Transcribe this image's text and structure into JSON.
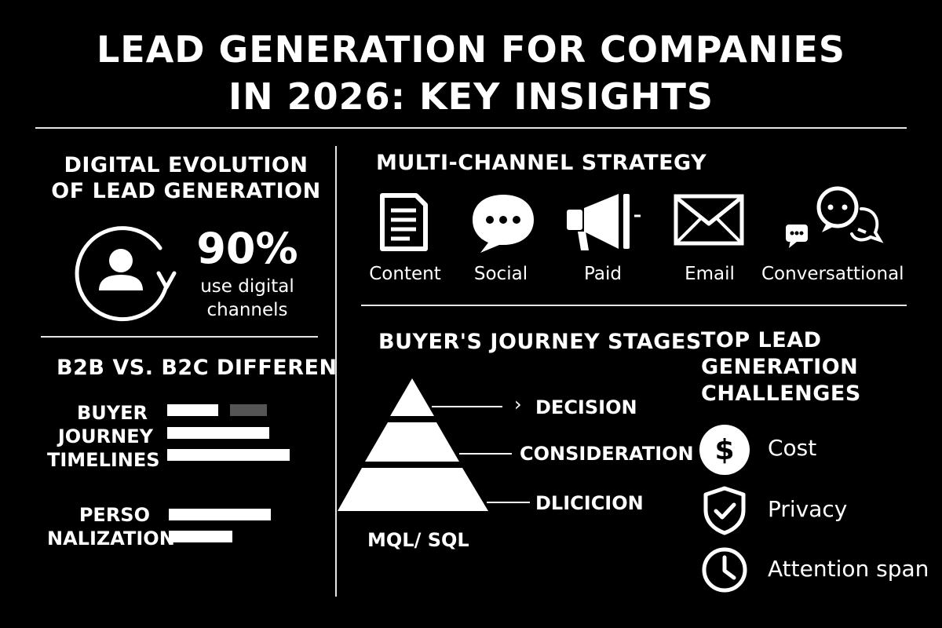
{
  "title": {
    "line1": "LEAD GENERATION FOR COMPANIES",
    "line2": "IN 2026: KEY INSIGHTS"
  },
  "digital_evolution": {
    "heading_line1": "DIGITAL EVOLUTION",
    "heading_line2": "OF LEAD GENERATION",
    "stat": "90%",
    "stat_caption_line1": "use digital",
    "stat_caption_line2": "channels",
    "icon": "user-cycle-icon"
  },
  "b2b_b2c": {
    "heading": "B2B VS. B2C DIFFEREN",
    "groups": [
      {
        "label_lines": [
          "BUYER",
          "JOURNEY",
          "TIMELINES"
        ],
        "bars": [
          {
            "value": 0.25,
            "color": "#ffffff"
          },
          {
            "value": 0.18,
            "color": "#555555"
          },
          {
            "value": 0.5,
            "color": "#ffffff"
          },
          {
            "value": 0.6,
            "color": "#ffffff"
          }
        ]
      },
      {
        "label_lines": [
          "PERSO",
          "NALIZATION"
        ],
        "bars": [
          {
            "value": 0.5,
            "color": "#ffffff"
          },
          {
            "value": 0.31,
            "color": "#ffffff"
          }
        ]
      }
    ]
  },
  "multichannel": {
    "heading": "MULTI-CHANNEL STRATEGY",
    "channels": [
      {
        "label": "Content",
        "icon": "document-icon"
      },
      {
        "label": "Social",
        "icon": "speech-bubble-icon"
      },
      {
        "label": "Paid",
        "icon": "megaphone-icon"
      },
      {
        "label": "Email",
        "icon": "envelope-icon"
      },
      {
        "label": "Conversattional",
        "icon": "chat-bubbles-icon"
      }
    ]
  },
  "buyers_journey": {
    "heading": "BUYER'S JOURNEY STAGES",
    "stages": [
      "DECISION",
      "CONSIDERATION",
      "DLICICION"
    ],
    "chevron": "›",
    "footer": "MQL/ SQL"
  },
  "challenges": {
    "heading_lines": [
      "TOP LEAD",
      "GENERATION",
      "CHALLENGES"
    ],
    "items": [
      {
        "label": "Cost",
        "icon": "dollar-icon"
      },
      {
        "label": "Privacy",
        "icon": "shield-check-icon"
      },
      {
        "label": "Attention span",
        "icon": "clock-icon"
      }
    ]
  }
}
